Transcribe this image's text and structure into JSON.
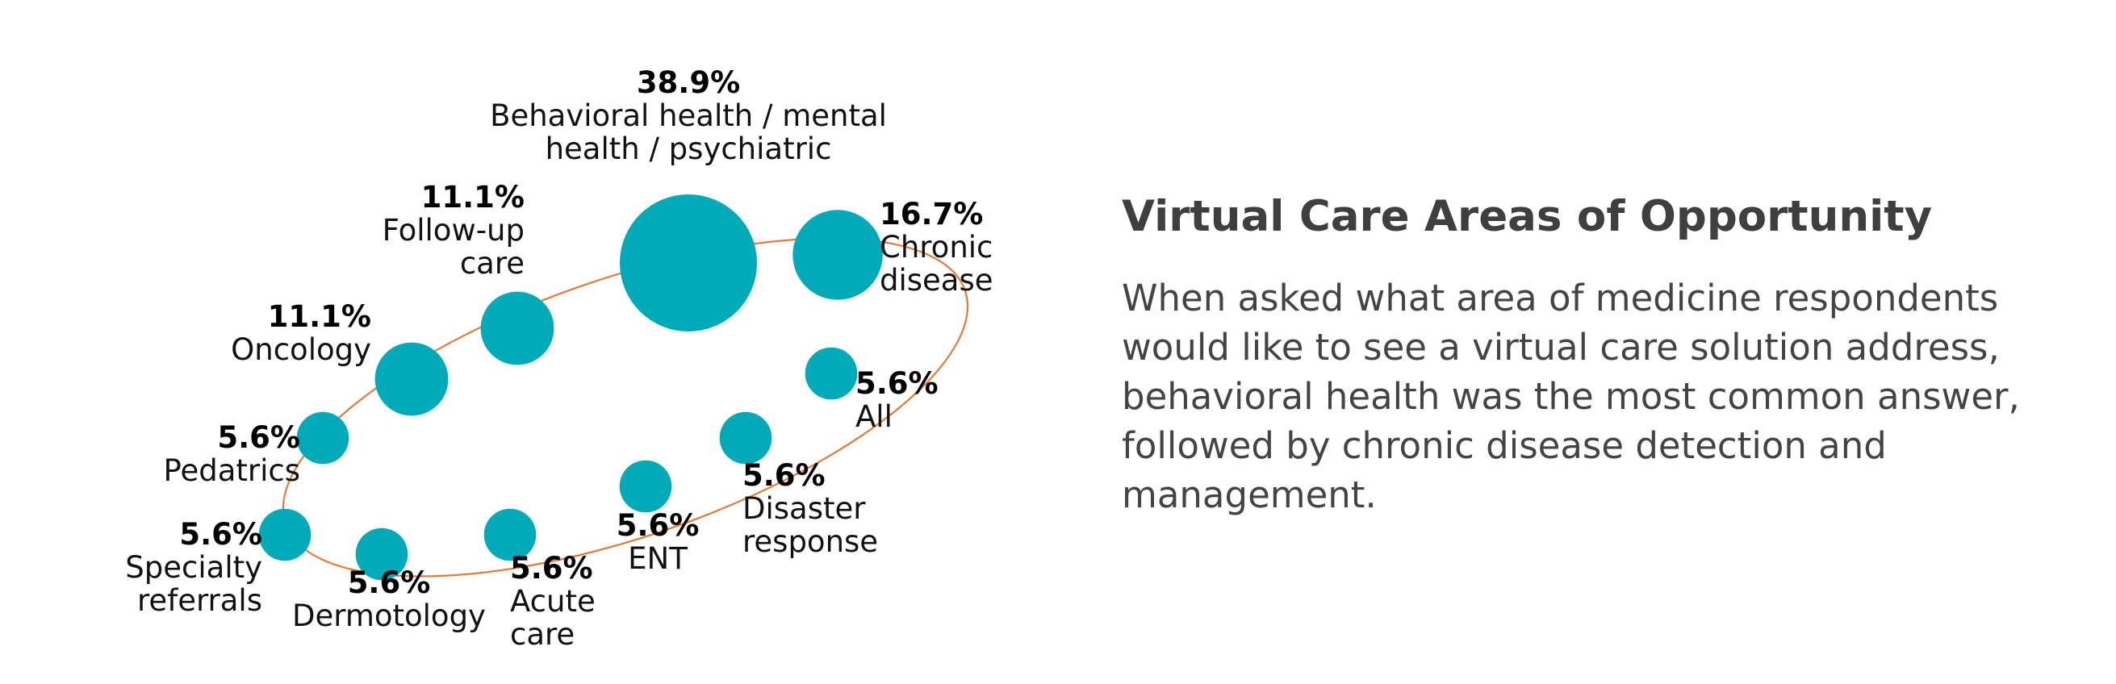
{
  "panel": {
    "title": "Virtual Care Areas of Opportunity",
    "body": "When asked what area of medicine respondents would like to see a virtual care solution address, behavioral health was the most common answer, followed by chronic disease detection and management."
  },
  "colors": {
    "bubble": "#00aab8",
    "ring": "#e07b39"
  },
  "chart_data": {
    "type": "bubble",
    "title": "",
    "unit": "%",
    "categories": [
      {
        "label": "Behavioral health / mental health / psychiatric",
        "value": 38.9,
        "value_text": "38.9%"
      },
      {
        "label": "Chronic disease",
        "value": 16.7,
        "value_text": "16.7%"
      },
      {
        "label": "All",
        "value": 5.6,
        "value_text": "5.6%"
      },
      {
        "label": "Disaster response",
        "value": 5.6,
        "value_text": "5.6%"
      },
      {
        "label": "ENT",
        "value": 5.6,
        "value_text": "5.6%"
      },
      {
        "label": "Acute care",
        "value": 5.6,
        "value_text": "5.6%"
      },
      {
        "label": "Dermotology",
        "value": 5.6,
        "value_text": "5.6%"
      },
      {
        "label": "Specialty referrals",
        "value": 5.6,
        "value_text": "5.6%"
      },
      {
        "label": "Pedatrics",
        "value": 5.6,
        "value_text": "5.6%"
      },
      {
        "label": "Oncology",
        "value": 11.1,
        "value_text": "11.1%"
      },
      {
        "label": "Follow-up care",
        "value": 11.1,
        "value_text": "11.1%"
      }
    ]
  }
}
